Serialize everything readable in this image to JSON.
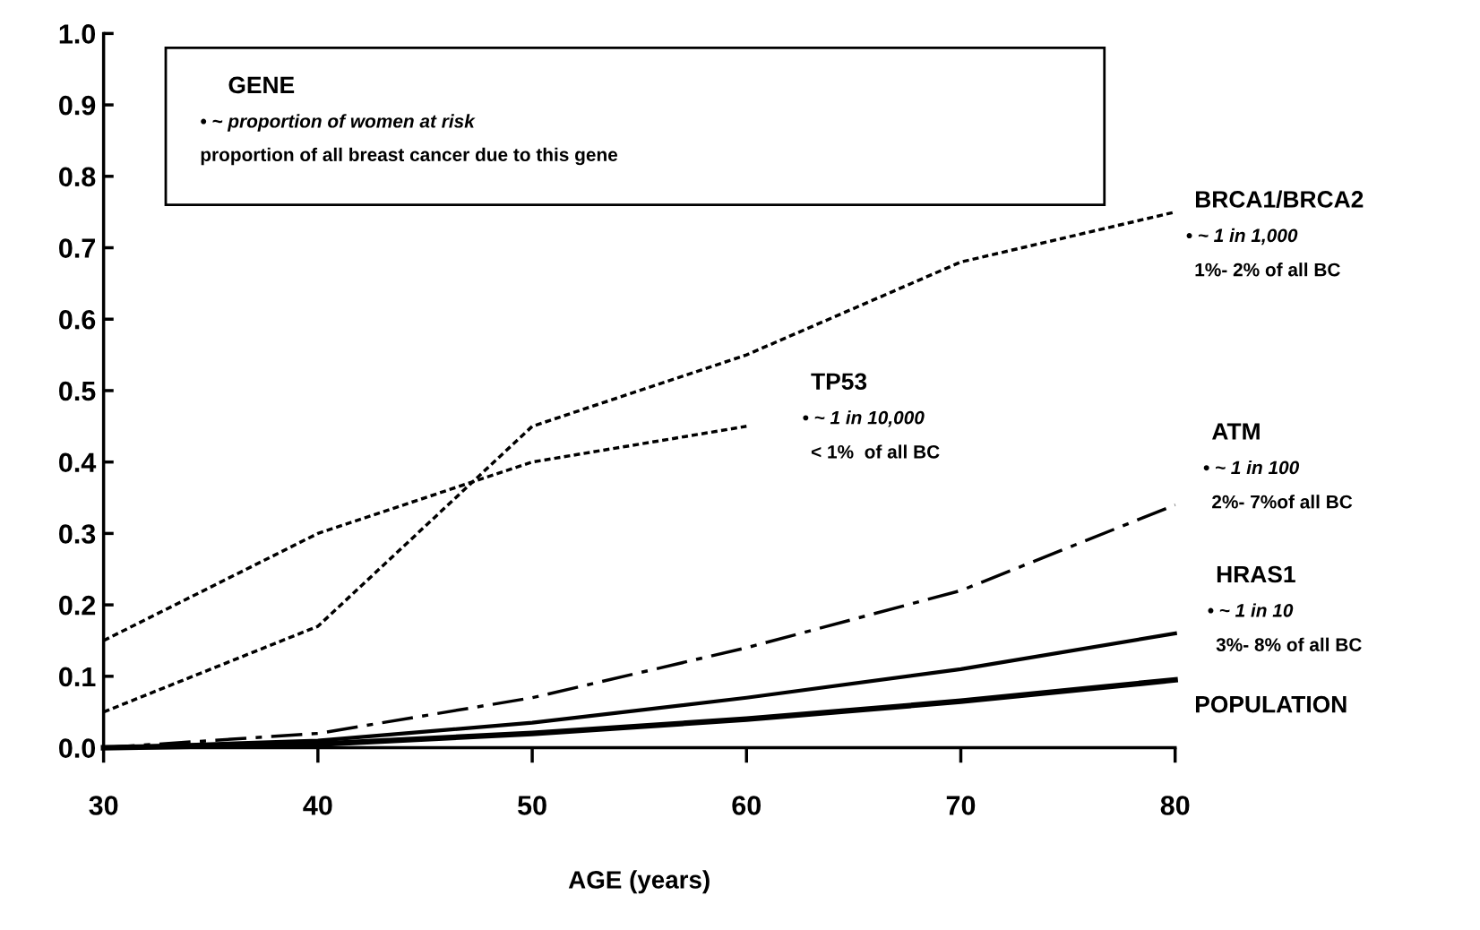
{
  "chart_data": {
    "type": "line",
    "xlabel": "AGE (years)",
    "x": [
      30,
      40,
      50,
      60,
      70,
      80
    ],
    "xlim": [
      30,
      80
    ],
    "xticks": [
      30,
      40,
      50,
      60,
      70,
      80
    ],
    "ylim": [
      0,
      1.0
    ],
    "yticks": [
      {
        "value": 0,
        "label": "0.0"
      },
      0.1,
      0.2,
      0.3,
      0.4,
      0.5,
      0.6,
      0.7,
      0.8,
      0.9,
      {
        "value": 1,
        "label": "1.0"
      }
    ],
    "grid": false,
    "legend": false,
    "marker": "none",
    "series": [
      {
        "name": "BRCA1/BRCA2",
        "color": "#000000",
        "line_style": "dotted",
        "values": [
          0.05,
          0.17,
          0.45,
          0.55,
          0.68,
          0.75
        ]
      },
      {
        "name": "TP53",
        "color": "#000000",
        "line_style": "dotted",
        "x": [
          30,
          40,
          50,
          60
        ],
        "values": [
          0.15,
          0.3,
          0.4,
          0.45
        ]
      },
      {
        "name": "ATM",
        "color": "#000000",
        "line_style": "dashed",
        "values": [
          0.0,
          0.02,
          0.07,
          0.14,
          0.22,
          0.34
        ]
      },
      {
        "name": "HRAS1",
        "color": "#000000",
        "line_style": "solid",
        "values": [
          0.0,
          0.01,
          0.035,
          0.07,
          0.11,
          0.16
        ]
      },
      {
        "name": "POPULATION",
        "color": "#000000",
        "line_style": "solid",
        "values": [
          0.0,
          0.005,
          0.02,
          0.04,
          0.065,
          0.095
        ]
      }
    ],
    "annotations": [
      "GENE",
      "• ~ proportion of women at risk",
      "proportion of all breast cancer due to this gene",
      "• ~ 1 in 1,000",
      "1%- 2% of all BC",
      "• ~ 1 in 10,000",
      "< 1%  of all BC",
      "• ~ 1 in 100",
      "2%- 7%of all BC",
      "• ~ 1 in 10",
      "3%- 8% of all BC"
    ]
  }
}
